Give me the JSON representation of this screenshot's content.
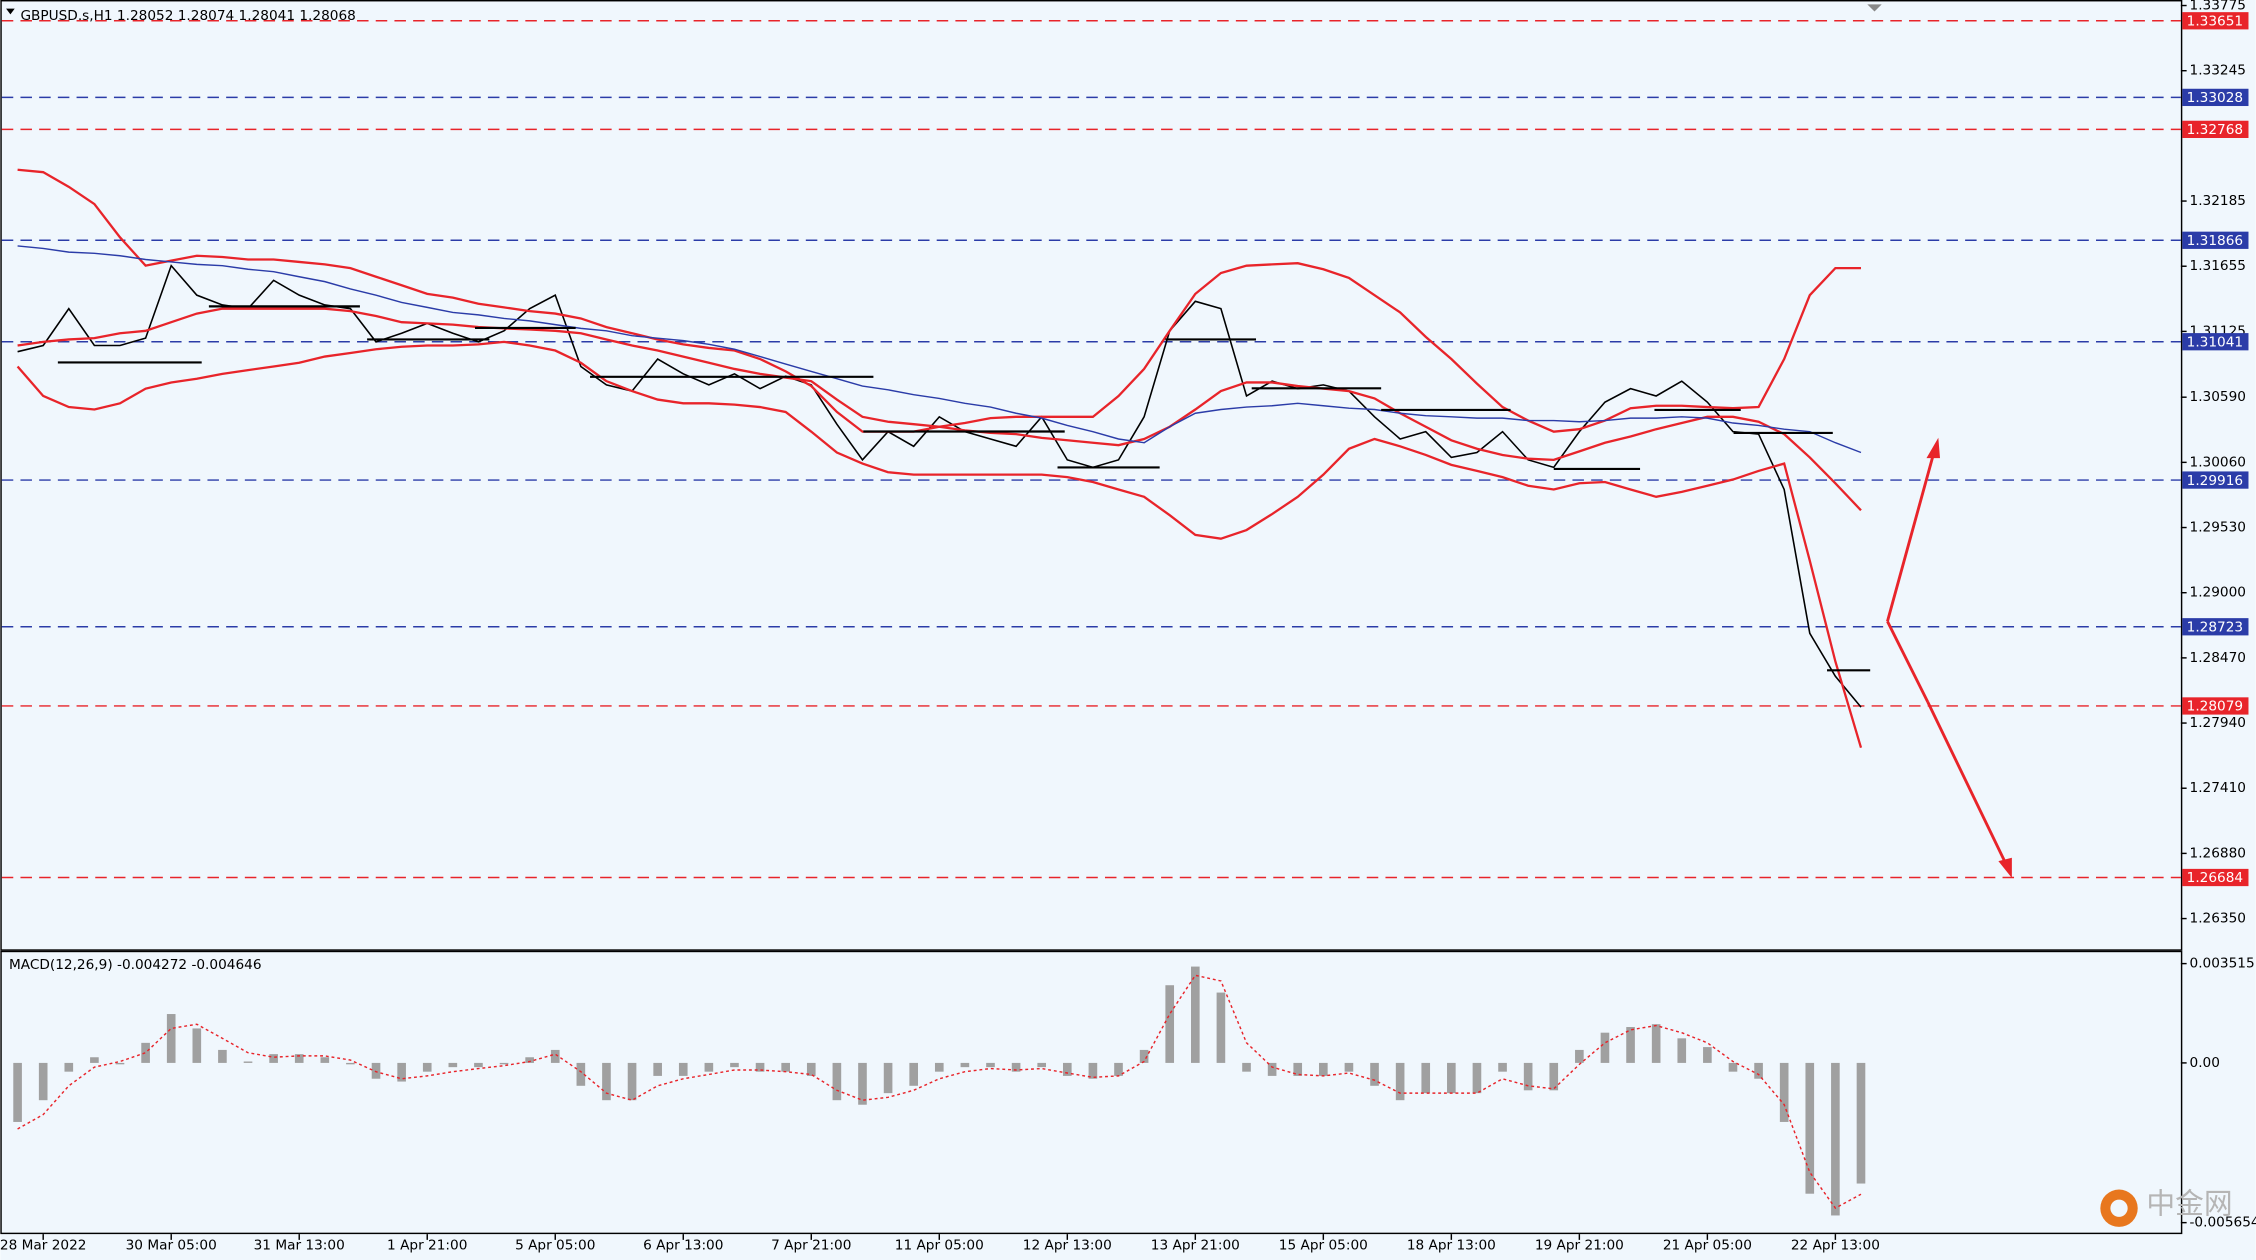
{
  "chart_data": [
    {
      "type": "line",
      "title": "GBPUSD.s,H1  1.28052 1.28074 1.28041 1.28068",
      "ylim": [
        1.261,
        1.3382
      ],
      "yticks": [
        1.33775,
        1.33245,
        1.32185,
        1.31655,
        1.31125,
        {
          "value": 1.3059,
          "label": "1.30590"
        },
        {
          "value": 1.3006,
          "label": "1.30060"
        },
        {
          "value": 1.2953,
          "label": "1.29530"
        },
        {
          "value": 1.29,
          "label": "1.29000"
        },
        {
          "value": 1.2847,
          "label": "1.28470"
        },
        {
          "value": 1.2794,
          "label": "1.27940"
        },
        {
          "value": 1.2741,
          "label": "1.27410"
        },
        {
          "value": 1.2688,
          "label": "1.26880"
        },
        {
          "value": 1.2635,
          "label": "1.26350"
        }
      ],
      "levels": [
        {
          "value": 1.33651,
          "color": "#e8242a"
        },
        {
          "value": 1.33028,
          "color": "#2b3ca8"
        },
        {
          "value": 1.32768,
          "color": "#e8242a"
        },
        {
          "value": 1.31866,
          "color": "#2b3ca8"
        },
        {
          "value": 1.31041,
          "color": "#2b3ca8"
        },
        {
          "value": 1.29916,
          "color": "#2b3ca8"
        },
        {
          "value": 1.28723,
          "color": "#2b3ca8"
        },
        {
          "value": 1.28079,
          "color": "#e8242a"
        },
        {
          "value": 1.26684,
          "color": "#e8242a"
        }
      ],
      "series": [
        {
          "color": "#000000",
          "values": [
            1.3096,
            1.3101,
            1.3131,
            1.3101,
            1.3101,
            1.3107,
            1.3166,
            1.3142,
            1.3134,
            1.3131,
            1.3154,
            1.3142,
            1.3134,
            1.3131,
            1.3104,
            1.3111,
            1.3119,
            1.3111,
            1.3104,
            1.3113,
            1.3131,
            1.3142,
            1.3084,
            1.3069,
            1.3064,
            1.309,
            1.3078,
            1.3069,
            1.3078,
            1.3066,
            1.3076,
            1.3069,
            1.3037,
            1.3008,
            1.3031,
            1.3019,
            1.3043,
            1.3031,
            1.3025,
            1.3019,
            1.3043,
            1.3008,
            1.3002,
            1.3008,
            1.3043,
            1.3113,
            1.3137,
            1.3131,
            1.306,
            1.3072,
            1.3066,
            1.3069,
            1.3064,
            1.3043,
            1.3025,
            1.3031,
            1.301,
            1.3014,
            1.3031,
            1.3008,
            1.3002,
            1.3031,
            1.3055,
            1.3066,
            1.306,
            1.3072,
            1.3055,
            1.3031,
            1.3029,
            1.2984,
            1.2867,
            1.2832,
            1.2807
          ]
        },
        {
          "color": "#e8242a",
          "values": [
            1.3244,
            1.3242,
            1.323,
            1.3216,
            1.3189,
            1.3166,
            1.317,
            1.3174,
            1.3173,
            1.3171,
            1.3171,
            1.3169,
            1.3167,
            1.3164,
            1.3157,
            1.315,
            1.3143,
            1.314,
            1.3135,
            1.3132,
            1.3129,
            1.3127,
            1.3123,
            1.3116,
            1.3111,
            1.3106,
            1.3102,
            1.3099,
            1.3097,
            1.309,
            1.308,
            1.3068,
            1.3047,
            1.3031,
            1.3031,
            1.3031,
            1.3035,
            1.3038,
            1.3042,
            1.3043,
            1.3043,
            1.3043,
            1.3043,
            1.306,
            1.3082,
            1.3113,
            1.3143,
            1.316,
            1.3166,
            1.3167,
            1.3168,
            1.3163,
            1.3156,
            1.3142,
            1.3128,
            1.3108,
            1.309,
            1.307,
            1.3051,
            1.304,
            1.3031,
            1.3033,
            1.304,
            1.305,
            1.3052,
            1.3052,
            1.3051,
            1.305,
            1.3051,
            1.309,
            1.3142,
            1.3164,
            1.3164
          ]
        },
        {
          "color": "#e8242a",
          "values": [
            1.3101,
            1.3104,
            1.3106,
            1.3107,
            1.3111,
            1.3113,
            1.312,
            1.3127,
            1.3131,
            1.3131,
            1.3131,
            1.3131,
            1.3131,
            1.3129,
            1.3125,
            1.312,
            1.3119,
            1.3118,
            1.3116,
            1.3115,
            1.3114,
            1.3113,
            1.3111,
            1.3106,
            1.3101,
            1.3097,
            1.3092,
            1.3087,
            1.3082,
            1.3078,
            1.3075,
            1.3072,
            1.3057,
            1.3043,
            1.3039,
            1.3037,
            1.3035,
            1.3032,
            1.303,
            1.3029,
            1.3026,
            1.3024,
            1.3022,
            1.302,
            1.3025,
            1.3035,
            1.3049,
            1.3064,
            1.3071,
            1.3071,
            1.3068,
            1.3066,
            1.3064,
            1.3058,
            1.3046,
            1.3035,
            1.3024,
            1.3017,
            1.3012,
            1.3009,
            1.3008,
            1.3015,
            1.3022,
            1.3027,
            1.3033,
            1.3038,
            1.3043,
            1.3043,
            1.3039,
            1.3029,
            1.301,
            1.2989,
            1.2967
          ]
        },
        {
          "color": "#e8242a",
          "values": [
            1.3084,
            1.306,
            1.3051,
            1.3049,
            1.3054,
            1.3066,
            1.3071,
            1.3074,
            1.3078,
            1.3081,
            1.3084,
            1.3087,
            1.3092,
            1.3095,
            1.3098,
            1.31,
            1.3101,
            1.3101,
            1.3102,
            1.3104,
            1.3101,
            1.3097,
            1.3087,
            1.3072,
            1.3064,
            1.3057,
            1.3054,
            1.3054,
            1.3053,
            1.3051,
            1.3047,
            1.3031,
            1.3014,
            1.3005,
            1.2998,
            1.2996,
            1.2996,
            1.2996,
            1.2996,
            1.2996,
            1.2996,
            1.2994,
            1.299,
            1.2984,
            1.2978,
            1.2963,
            1.2947,
            1.2944,
            1.2951,
            1.2964,
            1.2978,
            1.2996,
            1.3017,
            1.3025,
            1.3019,
            1.3012,
            1.3004,
            1.2999,
            1.2994,
            1.2987,
            1.2984,
            1.2989,
            1.299,
            1.2984,
            1.2978,
            1.2982,
            1.2987,
            1.2992,
            1.2999,
            1.3005,
            1.2926,
            1.2844,
            1.2774
          ]
        },
        {
          "color": "#2b3ca8",
          "values": [
            1.3182,
            1.318,
            1.3177,
            1.3176,
            1.3174,
            1.3171,
            1.3169,
            1.3167,
            1.3166,
            1.3163,
            1.3161,
            1.3157,
            1.3153,
            1.3147,
            1.3142,
            1.3136,
            1.3132,
            1.3128,
            1.3126,
            1.3123,
            1.3121,
            1.3118,
            1.3115,
            1.3113,
            1.3109,
            1.3107,
            1.3105,
            1.3102,
            1.3098,
            1.3092,
            1.3086,
            1.308,
            1.3074,
            1.3068,
            1.3065,
            1.3061,
            1.3058,
            1.3054,
            1.3051,
            1.3046,
            1.3042,
            1.3036,
            1.3031,
            1.3025,
            1.3022,
            1.3035,
            1.3046,
            1.3049,
            1.3051,
            1.3052,
            1.3054,
            1.3052,
            1.305,
            1.3049,
            1.3046,
            1.3044,
            1.3043,
            1.3042,
            1.3042,
            1.304,
            1.304,
            1.3039,
            1.304,
            1.3042,
            1.3042,
            1.3043,
            1.3042,
            1.3038,
            1.3036,
            1.3033,
            1.3031,
            1.3022,
            1.3014
          ]
        }
      ]
    },
    {
      "type": "bar",
      "title": "MACD(12,26,9) -0.004272 -0.004646",
      "color": "#a0a0a0",
      "ylim": [
        -0.00606,
        0.00397
      ],
      "yticks": [
        0.003515,
        {
          "value": 0,
          "label": "0.00"
        },
        -0.005654
      ],
      "categories": [
        null,
        "28 Mar 2022",
        null,
        null,
        null,
        null,
        "30 Mar 05:00",
        null,
        null,
        null,
        null,
        "31 Mar 13:00",
        null,
        null,
        null,
        null,
        "1 Apr 21:00",
        null,
        null,
        null,
        null,
        "5 Apr 05:00",
        null,
        null,
        null,
        null,
        "6 Apr 13:00",
        null,
        null,
        null,
        null,
        "7 Apr 21:00",
        null,
        null,
        null,
        null,
        "11 Apr 05:00",
        null,
        null,
        null,
        null,
        "12 Apr 13:00",
        null,
        null,
        null,
        null,
        "13 Apr 21:00",
        null,
        null,
        null,
        null,
        "15 Apr 05:00",
        null,
        null,
        null,
        null,
        "18 Apr 13:00",
        null,
        null,
        null,
        null,
        "19 Apr 21:00",
        null,
        null,
        null,
        null,
        "21 Apr 05:00",
        null,
        null,
        null,
        null,
        "22 Apr 13:00",
        null
      ],
      "values": [
        -0.00209,
        -0.00132,
        -0.00031,
        0.0002,
        -5e-05,
        0.00071,
        0.00173,
        0.00122,
        0.00046,
        5e-05,
        0.00031,
        0.00031,
        0.0002,
        -5e-05,
        -0.00056,
        -0.00066,
        -0.00031,
        -0.00015,
        -0.00015,
        -5e-05,
        0.0002,
        0.00046,
        -0.00081,
        -0.00132,
        -0.00132,
        -0.00046,
        -0.00046,
        -0.00031,
        -0.00015,
        -0.00031,
        -0.00031,
        -0.00046,
        -0.00132,
        -0.00148,
        -0.00107,
        -0.00081,
        -0.00031,
        -0.00015,
        -0.00015,
        -0.00031,
        -0.00015,
        -0.00046,
        -0.00056,
        -0.00046,
        0.00046,
        0.00275,
        0.00341,
        0.00249,
        -0.00031,
        -0.00046,
        -0.00046,
        -0.00046,
        -0.00031,
        -0.00081,
        -0.00132,
        -0.00107,
        -0.00107,
        -0.00107,
        -0.00031,
        -0.00097,
        -0.00097,
        0.00046,
        0.00107,
        0.00127,
        0.00137,
        0.00087,
        0.00056,
        -0.00031,
        -0.00056,
        -0.00209,
        -0.00463,
        -0.0054,
        -0.00427
      ],
      "signal": {
        "color": "#e8242a",
        "values": [
          -0.00234,
          -0.00183,
          -0.00081,
          -0.00015,
          5e-05,
          0.00036,
          0.00122,
          0.00137,
          0.00087,
          0.00036,
          0.0002,
          0.00025,
          0.00025,
          0.0001,
          -0.00031,
          -0.00056,
          -0.00046,
          -0.00031,
          -0.0002,
          -0.0001,
          5e-05,
          0.00031,
          -0.00031,
          -0.00107,
          -0.00132,
          -0.00081,
          -0.00056,
          -0.00041,
          -0.00025,
          -0.00025,
          -0.00031,
          -0.00041,
          -0.00097,
          -0.00132,
          -0.00122,
          -0.00097,
          -0.00056,
          -0.00031,
          -0.0002,
          -0.00025,
          -0.0002,
          -0.00036,
          -0.00051,
          -0.00046,
          5e-05,
          0.00173,
          0.0031,
          0.0029,
          0.00071,
          -0.00015,
          -0.00041,
          -0.00046,
          -0.00036,
          -0.00061,
          -0.00107,
          -0.00107,
          -0.00107,
          -0.00107,
          -0.00056,
          -0.00081,
          -0.00092,
          -5e-05,
          0.00071,
          0.00117,
          0.00132,
          0.00107,
          0.00071,
          5e-05,
          -0.00041,
          -0.00148,
          -0.00387,
          -0.00514,
          -0.00465
        ]
      }
    }
  ],
  "watermark": "中金网"
}
